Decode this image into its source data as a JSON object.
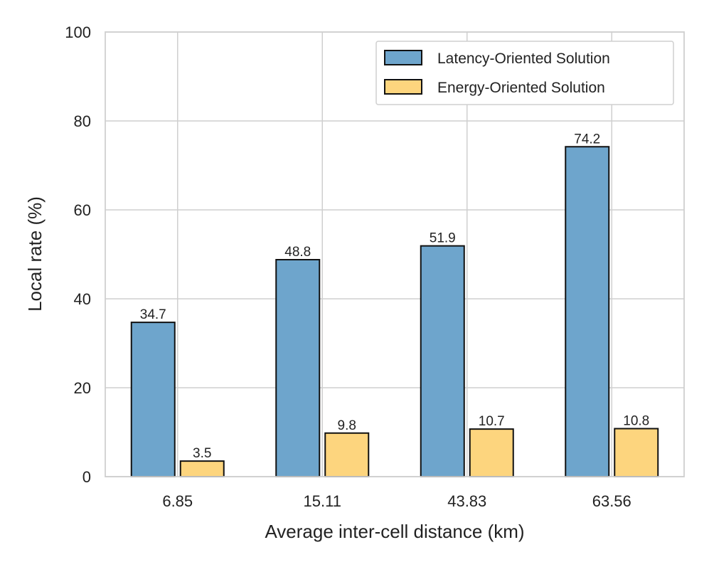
{
  "chart_data": {
    "type": "bar",
    "title": "",
    "xlabel": "Average inter-cell distance (km)",
    "ylabel": "Local rate (%)",
    "categories": [
      "6.85",
      "15.11",
      "43.83",
      "63.56"
    ],
    "series": [
      {
        "name": "Latency-Oriented Solution",
        "color": "#6ea5cc",
        "values": [
          34.7,
          48.8,
          51.9,
          74.2
        ],
        "labels": [
          "34.7",
          "48.8",
          "51.9",
          "74.2"
        ]
      },
      {
        "name": "Energy-Oriented Solution",
        "color": "#fdd57e",
        "values": [
          3.5,
          9.8,
          10.7,
          10.8
        ],
        "labels": [
          "3.5",
          "9.8",
          "10.7",
          "10.8"
        ]
      }
    ],
    "ylim": [
      0,
      100
    ],
    "yticks": [
      "0",
      "20",
      "40",
      "60",
      "80",
      "100"
    ],
    "grid": true,
    "legend_position": "top-right"
  }
}
